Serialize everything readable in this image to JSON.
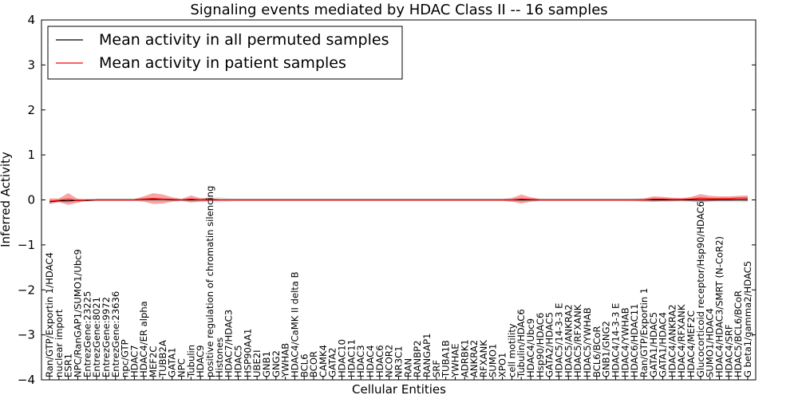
{
  "chart_data": {
    "type": "line",
    "title": "Signaling events mediated by HDAC Class II -- 16 samples",
    "xlabel": "Cellular Entities",
    "ylabel": "Inferred Activity",
    "ylim": [
      -4,
      4
    ],
    "yticks": [
      "4",
      "3",
      "2",
      "1",
      "0",
      "−1",
      "−2",
      "−3",
      "−4"
    ],
    "grid": false,
    "legend": {
      "location": "top-left"
    },
    "categories": [
      "Ran/GTP/Exportin 1/HDAC4",
      "nuclear import",
      "ESR1",
      "NPC/RanGAP1/SUMO1/Ubc9",
      "EntrezGene:23225",
      "EntrezGene:8021",
      "EntrezGene:9972",
      "EntrezGene:23636",
      "npc/GTP",
      "HDAC7",
      "HDAC4/ER alpha",
      "MEF2C",
      "TUBB2A",
      "GATA1",
      "NPC",
      "Tubulin",
      "HDAC9",
      "positive regulation of chromatin silencing",
      "Histones",
      "HDAC7/HDAC3",
      "HDAC5",
      "HSP90AA1",
      "UBE2I",
      "GNB1",
      "GNG2",
      "YWHAB",
      "HDAC4/CaMK II delta B",
      "BCL6",
      "BCOR",
      "CAMK4",
      "GATA2",
      "HDAC10",
      "HDAC11",
      "HDAC3",
      "HDAC4",
      "HDAC6",
      "NCOR2",
      "NR3C1",
      "RAN",
      "RANBP2",
      "RANGAP1",
      "SRF",
      "TUBA1B",
      "YWHAE",
      "ADRBK1",
      "ANKRA2",
      "RFXANK",
      "SUMO1",
      "XPO1",
      "cell motility",
      "Tubulin/HDAC6",
      "HDAC4/Ubc9",
      "Hsp90/HDAC6",
      "GATA2/HDAC5",
      "HDAC5/14-3-3 E",
      "HDAC5/ANKRA2",
      "HDAC5/RFXANK",
      "HDAC5/YWHAB",
      "BCL6/BCoR",
      "GNB1/GNG2",
      "HDAC4/14-3-3 E",
      "HDAC4/YWHAB",
      "HDAC6/HDAC11",
      "Ran/GTP/Exportin 1",
      "GATA1/HDAC5",
      "GATA1/HDAC4",
      "HDAC4/ANKRA2",
      "HDAC4/RFXANK",
      "HDAC4/MEF2C",
      "Glucocorticoid receptor/Hsp90/HDAC6",
      "SUMO1/HDAC4",
      "HDAC4/HDAC3/SMRT (N-CoR2)",
      "HDAC4/SRF",
      "HDAC5/BCL6/BCoR",
      "G beta1/gamma2/HDAC5"
    ],
    "series": [
      {
        "name": "Mean activity in all permuted samples",
        "color": "#000000",
        "values": [
          -0.04,
          -0.02,
          -0.02,
          -0.01,
          -0.01,
          0,
          0,
          0,
          0,
          0,
          0.01,
          0.01,
          0.01,
          0,
          0,
          0,
          0,
          0,
          0,
          0,
          0,
          0,
          0,
          0,
          0,
          0,
          0,
          0,
          0,
          0,
          0,
          0,
          0,
          0,
          0,
          0,
          0,
          0,
          0,
          0,
          0,
          0,
          0,
          0,
          0,
          0,
          0,
          0,
          0,
          0,
          0,
          0,
          0,
          0,
          0,
          0,
          0,
          0,
          0,
          0,
          0,
          0,
          0,
          0,
          0,
          0,
          0,
          0,
          0,
          0,
          0,
          0,
          0,
          0,
          0
        ]
      },
      {
        "name": "Mean activity in patient samples",
        "color": "#ff0000",
        "values": [
          -0.03,
          -0.01,
          0.02,
          -0.02,
          0,
          0,
          0,
          0,
          0,
          0,
          0.02,
          0.03,
          0.02,
          0.01,
          0,
          0.02,
          0,
          0.01,
          0,
          0,
          0,
          0,
          0,
          0,
          0,
          0,
          0,
          0,
          0,
          0,
          0,
          0,
          0,
          0,
          0,
          0,
          0,
          0,
          0,
          0,
          0,
          0,
          0,
          0,
          0,
          0,
          0,
          0,
          0,
          0,
          0.02,
          0.01,
          0,
          0,
          0,
          0,
          0,
          0,
          0,
          0,
          0,
          0,
          0,
          0,
          0.02,
          0.02,
          0.01,
          0.01,
          0.02,
          0.04,
          0.03,
          0.03,
          0.03,
          0.04,
          0.04
        ]
      }
    ],
    "bands": {
      "permuted_spread": [
        0.06,
        0.04,
        0.05,
        0.04,
        0.03,
        0.03,
        0.03,
        0.03,
        0.03,
        0.03,
        0.04,
        0.04,
        0.04,
        0.03,
        0.03,
        0.04,
        0.04,
        0.05,
        0.06,
        0.04,
        0.03,
        0.03,
        0.03,
        0.03,
        0.03,
        0.03,
        0.03,
        0.03,
        0.03,
        0.03,
        0.03,
        0.03,
        0.03,
        0.03,
        0.03,
        0.03,
        0.03,
        0.03,
        0.03,
        0.03,
        0.03,
        0.03,
        0.03,
        0.03,
        0.03,
        0.03,
        0.03,
        0.03,
        0.03,
        0.04,
        0.05,
        0.04,
        0.03,
        0.03,
        0.03,
        0.03,
        0.03,
        0.03,
        0.03,
        0.03,
        0.03,
        0.03,
        0.04,
        0.04,
        0.05,
        0.04,
        0.04,
        0.04,
        0.05,
        0.06,
        0.05,
        0.05,
        0.05,
        0.05,
        0.06
      ],
      "patient_spread": [
        0.06,
        0.04,
        0.13,
        0.04,
        0.02,
        0.02,
        0.02,
        0.02,
        0.02,
        0.02,
        0.06,
        0.12,
        0.1,
        0.05,
        0.02,
        0.08,
        0.04,
        0.03,
        0.02,
        0.02,
        0.02,
        0.02,
        0.02,
        0.02,
        0.02,
        0.02,
        0.02,
        0.02,
        0.02,
        0.02,
        0.02,
        0.02,
        0.02,
        0.02,
        0.02,
        0.02,
        0.02,
        0.02,
        0.02,
        0.02,
        0.02,
        0.02,
        0.02,
        0.02,
        0.02,
        0.02,
        0.02,
        0.02,
        0.02,
        0.04,
        0.1,
        0.05,
        0.02,
        0.02,
        0.02,
        0.02,
        0.02,
        0.02,
        0.02,
        0.02,
        0.02,
        0.02,
        0.02,
        0.03,
        0.06,
        0.05,
        0.04,
        0.03,
        0.05,
        0.09,
        0.06,
        0.05,
        0.05,
        0.05,
        0.06
      ]
    }
  }
}
